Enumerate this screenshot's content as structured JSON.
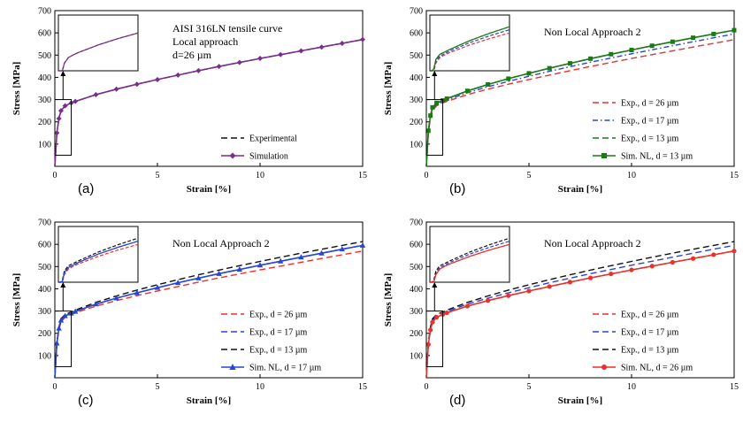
{
  "colors": {
    "exp26": "#e8322b",
    "exp17": "#2746d6",
    "exp13": "#1a7a14",
    "black": "#111111",
    "sim_a": "#7b2c8f",
    "sim_b": "#1a7a14",
    "sim_c": "#2746d6",
    "sim_d": "#e8322b"
  },
  "chart_data": [
    {
      "type": "line",
      "panel_label": "(a)",
      "annotation": [
        "AISI 316LN tensile curve",
        "Local approach",
        "d=26 µm"
      ],
      "xlabel": "Strain [%]",
      "ylabel": "Stress [MPa]",
      "xlim": [
        0,
        15
      ],
      "ylim": [
        0,
        700
      ],
      "xticks": [
        "0",
        "5",
        "10",
        "15"
      ],
      "yticks": [
        "100",
        "200",
        "300",
        "400",
        "500",
        "600",
        "700"
      ],
      "legend_position": "bottom-right",
      "series": [
        {
          "name": "Experimental",
          "style": "dashed",
          "color_key": "black",
          "x": [
            0,
            0.1,
            0.2,
            0.3,
            0.5,
            0.8,
            1,
            2,
            3,
            4,
            5,
            6,
            7,
            8,
            9,
            10,
            11,
            12,
            13,
            14,
            15
          ],
          "y": [
            0,
            150,
            215,
            250,
            272,
            285,
            292,
            322,
            347,
            369,
            390,
            410,
            430,
            449,
            467,
            485,
            502,
            519,
            536,
            553,
            570
          ]
        },
        {
          "name": "Simulation",
          "style": "solid-diamond",
          "color_key": "sim_a",
          "x": [
            0,
            0.1,
            0.2,
            0.3,
            0.5,
            0.8,
            1,
            2,
            3,
            4,
            5,
            6,
            7,
            8,
            9,
            10,
            11,
            12,
            13,
            14,
            15
          ],
          "y": [
            0,
            150,
            215,
            250,
            272,
            285,
            292,
            322,
            347,
            369,
            390,
            410,
            430,
            449,
            467,
            485,
            502,
            519,
            536,
            553,
            570
          ]
        }
      ]
    },
    {
      "type": "line",
      "panel_label": "(b)",
      "annotation": [
        "Non Local Approach 2"
      ],
      "xlabel": "Strain [%]",
      "ylabel": "Stress [MPa]",
      "xlim": [
        0,
        15
      ],
      "ylim": [
        0,
        700
      ],
      "xticks": [
        "0",
        "5",
        "10",
        "15"
      ],
      "yticks": [
        "100",
        "200",
        "300",
        "400",
        "500",
        "600",
        "700"
      ],
      "legend_position": "bottom-right",
      "series": [
        {
          "name": "Exp., d = 26 µm",
          "style": "dashed",
          "color_key": "exp26",
          "x": [
            0,
            0.1,
            0.2,
            0.3,
            0.5,
            0.8,
            1,
            2,
            3,
            4,
            5,
            6,
            7,
            8,
            9,
            10,
            11,
            12,
            13,
            14,
            15
          ],
          "y": [
            0,
            150,
            215,
            250,
            272,
            285,
            292,
            322,
            347,
            369,
            390,
            410,
            430,
            449,
            467,
            485,
            502,
            519,
            536,
            553,
            570
          ]
        },
        {
          "name": "Exp., d = 17 µm",
          "style": "dashdot",
          "color_key": "exp17",
          "x": [
            0,
            0.1,
            0.2,
            0.3,
            0.5,
            0.8,
            1,
            2,
            3,
            4,
            5,
            6,
            7,
            8,
            9,
            10,
            11,
            12,
            13,
            14,
            15
          ],
          "y": [
            0,
            155,
            222,
            258,
            278,
            290,
            298,
            331,
            358,
            382,
            405,
            427,
            448,
            468,
            487,
            506,
            524,
            542,
            560,
            578,
            595
          ]
        },
        {
          "name": "Exp., d = 13 µm",
          "style": "dashed",
          "color_key": "exp13",
          "x": [
            0,
            0.1,
            0.2,
            0.3,
            0.5,
            0.8,
            1,
            2,
            3,
            4,
            5,
            6,
            7,
            8,
            9,
            10,
            11,
            12,
            13,
            14,
            15
          ],
          "y": [
            0,
            160,
            228,
            265,
            285,
            296,
            304,
            339,
            368,
            394,
            418,
            441,
            463,
            484,
            504,
            523,
            542,
            560,
            578,
            595,
            612
          ]
        },
        {
          "name": "Sim. NL, d = 13 µm",
          "style": "solid-square",
          "color_key": "sim_b",
          "x": [
            0,
            0.1,
            0.2,
            0.3,
            0.5,
            0.8,
            1,
            2,
            3,
            4,
            5,
            6,
            7,
            8,
            9,
            10,
            11,
            12,
            13,
            14,
            15
          ],
          "y": [
            0,
            160,
            228,
            265,
            285,
            296,
            304,
            339,
            368,
            394,
            418,
            441,
            463,
            484,
            504,
            523,
            542,
            560,
            578,
            595,
            612
          ]
        }
      ]
    },
    {
      "type": "line",
      "panel_label": "(c)",
      "annotation": [
        "Non Local Approach 2"
      ],
      "xlabel": "Strain [%]",
      "ylabel": "Stress [MPa]",
      "xlim": [
        0,
        15
      ],
      "ylim": [
        0,
        700
      ],
      "xticks": [
        "0",
        "5",
        "10",
        "15"
      ],
      "yticks": [
        "100",
        "200",
        "300",
        "400",
        "500",
        "600",
        "700"
      ],
      "legend_position": "bottom-right",
      "series": [
        {
          "name": "Exp., d = 26 µm",
          "style": "dashed",
          "color_key": "exp26",
          "x": [
            0,
            0.1,
            0.2,
            0.3,
            0.5,
            0.8,
            1,
            2,
            3,
            4,
            5,
            6,
            7,
            8,
            9,
            10,
            11,
            12,
            13,
            14,
            15
          ],
          "y": [
            0,
            150,
            215,
            250,
            272,
            285,
            292,
            322,
            347,
            369,
            390,
            410,
            430,
            449,
            467,
            485,
            502,
            519,
            536,
            553,
            570
          ]
        },
        {
          "name": "Exp., d = 17 µm",
          "style": "dashed",
          "color_key": "exp17",
          "x": [
            0,
            0.1,
            0.2,
            0.3,
            0.5,
            0.8,
            1,
            2,
            3,
            4,
            5,
            6,
            7,
            8,
            9,
            10,
            11,
            12,
            13,
            14,
            15
          ],
          "y": [
            0,
            155,
            222,
            258,
            278,
            290,
            298,
            331,
            358,
            382,
            405,
            427,
            448,
            468,
            487,
            506,
            524,
            542,
            560,
            578,
            595
          ]
        },
        {
          "name": "Exp., d = 13 µm",
          "style": "dashed",
          "color_key": "black",
          "x": [
            0,
            0.1,
            0.2,
            0.3,
            0.5,
            0.8,
            1,
            2,
            3,
            4,
            5,
            6,
            7,
            8,
            9,
            10,
            11,
            12,
            13,
            14,
            15
          ],
          "y": [
            0,
            160,
            228,
            265,
            285,
            296,
            304,
            339,
            368,
            394,
            418,
            441,
            463,
            484,
            504,
            523,
            542,
            560,
            578,
            595,
            612
          ]
        },
        {
          "name": "Sim. NL, d = 17 µm",
          "style": "solid-triangle",
          "color_key": "sim_c",
          "x": [
            0,
            0.1,
            0.2,
            0.3,
            0.5,
            0.8,
            1,
            2,
            3,
            4,
            5,
            6,
            7,
            8,
            9,
            10,
            11,
            12,
            13,
            14,
            15
          ],
          "y": [
            0,
            155,
            222,
            258,
            278,
            290,
            298,
            331,
            358,
            382,
            405,
            427,
            448,
            468,
            487,
            506,
            524,
            542,
            560,
            578,
            595
          ]
        }
      ]
    },
    {
      "type": "line",
      "panel_label": "(d)",
      "annotation": [
        "Non Local Approach 2"
      ],
      "xlabel": "Strain [%]",
      "ylabel": "Stress [MPa]",
      "xlim": [
        0,
        15
      ],
      "ylim": [
        0,
        700
      ],
      "xticks": [
        "0",
        "5",
        "10",
        "15"
      ],
      "yticks": [
        "100",
        "200",
        "300",
        "400",
        "500",
        "600",
        "700"
      ],
      "legend_position": "bottom-right",
      "series": [
        {
          "name": "Exp., d = 26 µm",
          "style": "dashed",
          "color_key": "exp26",
          "x": [
            0,
            0.1,
            0.2,
            0.3,
            0.5,
            0.8,
            1,
            2,
            3,
            4,
            5,
            6,
            7,
            8,
            9,
            10,
            11,
            12,
            13,
            14,
            15
          ],
          "y": [
            0,
            150,
            215,
            250,
            272,
            285,
            292,
            322,
            347,
            369,
            390,
            410,
            430,
            449,
            467,
            485,
            502,
            519,
            536,
            553,
            570
          ]
        },
        {
          "name": "Exp., d = 17 µm",
          "style": "dashed",
          "color_key": "exp17",
          "x": [
            0,
            0.1,
            0.2,
            0.3,
            0.5,
            0.8,
            1,
            2,
            3,
            4,
            5,
            6,
            7,
            8,
            9,
            10,
            11,
            12,
            13,
            14,
            15
          ],
          "y": [
            0,
            155,
            222,
            258,
            278,
            290,
            298,
            331,
            358,
            382,
            405,
            427,
            448,
            468,
            487,
            506,
            524,
            542,
            560,
            578,
            595
          ]
        },
        {
          "name": "Exp., d = 13 µm",
          "style": "dashed",
          "color_key": "black",
          "x": [
            0,
            0.1,
            0.2,
            0.3,
            0.5,
            0.8,
            1,
            2,
            3,
            4,
            5,
            6,
            7,
            8,
            9,
            10,
            11,
            12,
            13,
            14,
            15
          ],
          "y": [
            0,
            160,
            228,
            265,
            285,
            296,
            304,
            339,
            368,
            394,
            418,
            441,
            463,
            484,
            504,
            523,
            542,
            560,
            578,
            595,
            612
          ]
        },
        {
          "name": "Sim. NL, d = 26 µm",
          "style": "solid-circle",
          "color_key": "sim_d",
          "x": [
            0,
            0.1,
            0.2,
            0.3,
            0.5,
            0.8,
            1,
            2,
            3,
            4,
            5,
            6,
            7,
            8,
            9,
            10,
            11,
            12,
            13,
            14,
            15
          ],
          "y": [
            0,
            150,
            215,
            250,
            272,
            285,
            292,
            322,
            347,
            369,
            390,
            410,
            430,
            449,
            467,
            485,
            502,
            519,
            536,
            553,
            570
          ]
        }
      ]
    }
  ]
}
